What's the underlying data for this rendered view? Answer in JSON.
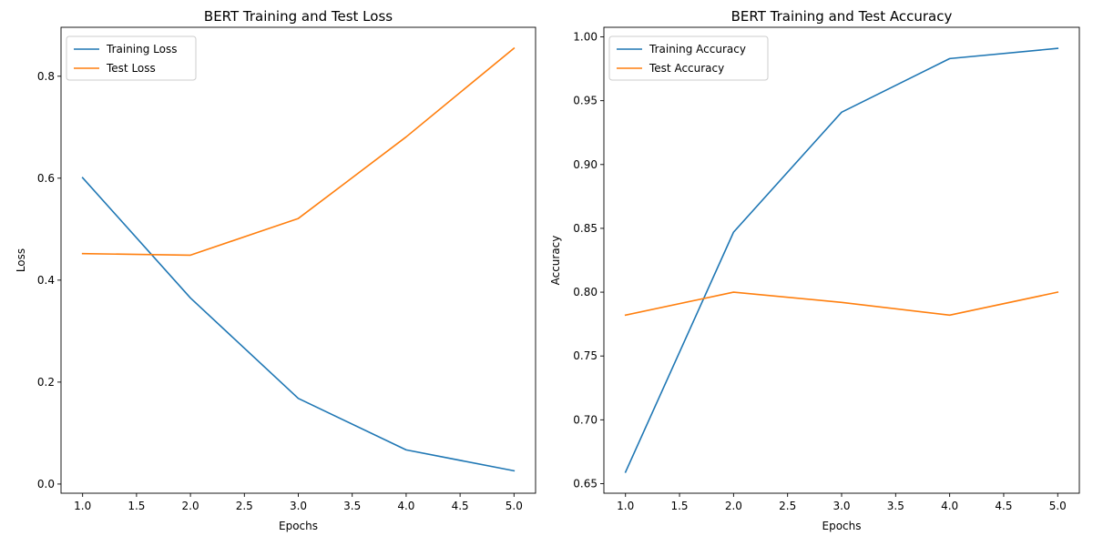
{
  "chart_data": [
    {
      "type": "line",
      "title": "BERT Training and Test Loss",
      "xlabel": "Epochs",
      "ylabel": "Loss",
      "x": [
        1,
        2,
        3,
        4,
        5
      ],
      "xlim": [
        0.8,
        5.2
      ],
      "ylim": [
        -0.018,
        0.896
      ],
      "xticks": [
        "1.0",
        "1.5",
        "2.0",
        "2.5",
        "3.0",
        "3.5",
        "4.0",
        "4.5",
        "5.0"
      ],
      "yticks": [
        "0.0",
        "0.2",
        "0.4",
        "0.6",
        "0.8"
      ],
      "legend_position": "upper-left",
      "grid": false,
      "series": [
        {
          "name": "Training Loss",
          "color": "#1f77b4",
          "values": [
            0.601,
            0.365,
            0.168,
            0.067,
            0.026
          ]
        },
        {
          "name": "Test Loss",
          "color": "#ff7f0e",
          "values": [
            0.452,
            0.449,
            0.521,
            0.681,
            0.855
          ]
        }
      ]
    },
    {
      "type": "line",
      "title": "BERT Training and Test Accuracy",
      "xlabel": "Epochs",
      "ylabel": "Accuracy",
      "x": [
        1,
        2,
        3,
        4,
        5
      ],
      "xlim": [
        0.8,
        5.2
      ],
      "ylim": [
        0.6425,
        1.0075
      ],
      "xticks": [
        "1.0",
        "1.5",
        "2.0",
        "2.5",
        "3.0",
        "3.5",
        "4.0",
        "4.5",
        "5.0"
      ],
      "yticks": [
        "0.65",
        "0.70",
        "0.75",
        "0.80",
        "0.85",
        "0.90",
        "0.95",
        "1.00"
      ],
      "legend_position": "upper-left",
      "grid": false,
      "series": [
        {
          "name": "Training Accuracy",
          "color": "#1f77b4",
          "values": [
            0.659,
            0.847,
            0.941,
            0.983,
            0.991
          ]
        },
        {
          "name": "Test Accuracy",
          "color": "#ff7f0e",
          "values": [
            0.782,
            0.8,
            0.792,
            0.782,
            0.8
          ]
        }
      ]
    }
  ]
}
